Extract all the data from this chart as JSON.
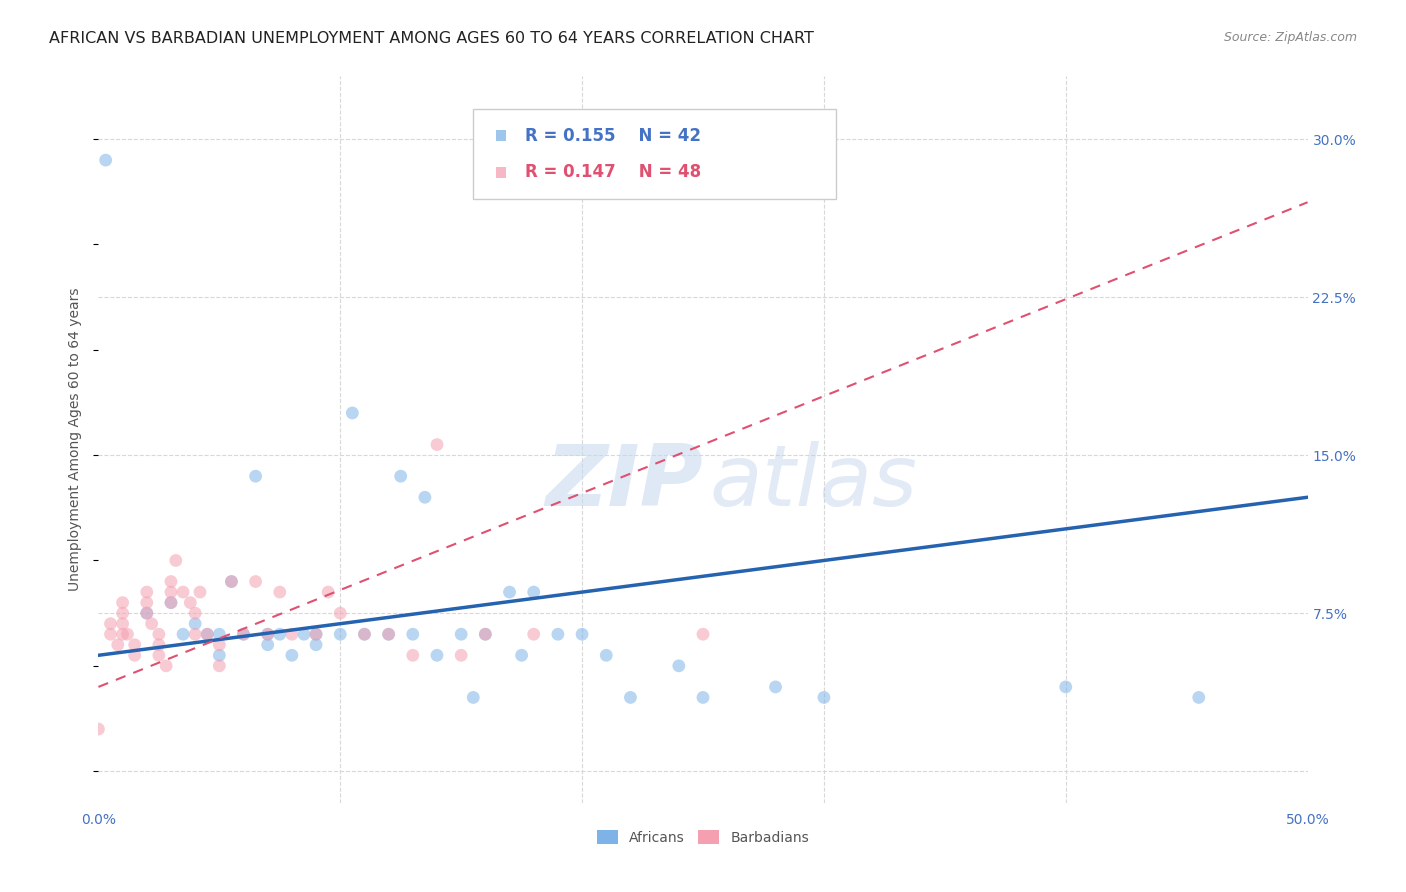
{
  "title": "AFRICAN VS BARBADIAN UNEMPLOYMENT AMONG AGES 60 TO 64 YEARS CORRELATION CHART",
  "source": "Source: ZipAtlas.com",
  "ylabel": "Unemployment Among Ages 60 to 64 years",
  "xlim": [
    0.0,
    0.5
  ],
  "ylim": [
    -0.015,
    0.33
  ],
  "xticks": [
    0.0,
    0.1,
    0.2,
    0.3,
    0.4,
    0.5
  ],
  "xticklabels": [
    "0.0%",
    "",
    "",
    "",
    "",
    "50.0%"
  ],
  "ytick_positions": [
    0.0,
    0.075,
    0.15,
    0.225,
    0.3
  ],
  "ytick_labels": [
    "",
    "7.5%",
    "15.0%",
    "22.5%",
    "30.0%"
  ],
  "africans_x": [
    0.003,
    0.02,
    0.03,
    0.035,
    0.04,
    0.045,
    0.05,
    0.05,
    0.055,
    0.06,
    0.065,
    0.07,
    0.07,
    0.075,
    0.08,
    0.085,
    0.09,
    0.09,
    0.1,
    0.105,
    0.11,
    0.12,
    0.125,
    0.13,
    0.135,
    0.14,
    0.15,
    0.155,
    0.16,
    0.17,
    0.175,
    0.18,
    0.19,
    0.2,
    0.21,
    0.22,
    0.24,
    0.25,
    0.28,
    0.3,
    0.4,
    0.455
  ],
  "africans_y": [
    0.29,
    0.075,
    0.08,
    0.065,
    0.07,
    0.065,
    0.065,
    0.055,
    0.09,
    0.065,
    0.14,
    0.065,
    0.06,
    0.065,
    0.055,
    0.065,
    0.065,
    0.06,
    0.065,
    0.17,
    0.065,
    0.065,
    0.14,
    0.065,
    0.13,
    0.055,
    0.065,
    0.035,
    0.065,
    0.085,
    0.055,
    0.085,
    0.065,
    0.065,
    0.055,
    0.035,
    0.05,
    0.035,
    0.04,
    0.035,
    0.04,
    0.035
  ],
  "barbadians_x": [
    0.0,
    0.005,
    0.005,
    0.008,
    0.01,
    0.01,
    0.01,
    0.01,
    0.012,
    0.015,
    0.015,
    0.02,
    0.02,
    0.02,
    0.022,
    0.025,
    0.025,
    0.025,
    0.028,
    0.03,
    0.03,
    0.03,
    0.032,
    0.035,
    0.038,
    0.04,
    0.04,
    0.042,
    0.045,
    0.05,
    0.05,
    0.055,
    0.06,
    0.065,
    0.07,
    0.075,
    0.08,
    0.09,
    0.095,
    0.1,
    0.11,
    0.12,
    0.13,
    0.14,
    0.15,
    0.16,
    0.18,
    0.25
  ],
  "barbadians_y": [
    0.02,
    0.065,
    0.07,
    0.06,
    0.065,
    0.08,
    0.075,
    0.07,
    0.065,
    0.06,
    0.055,
    0.085,
    0.08,
    0.075,
    0.07,
    0.065,
    0.06,
    0.055,
    0.05,
    0.09,
    0.085,
    0.08,
    0.1,
    0.085,
    0.08,
    0.075,
    0.065,
    0.085,
    0.065,
    0.06,
    0.05,
    0.09,
    0.065,
    0.09,
    0.065,
    0.085,
    0.065,
    0.065,
    0.085,
    0.075,
    0.065,
    0.065,
    0.055,
    0.155,
    0.055,
    0.065,
    0.065,
    0.065
  ],
  "african_color": "#7eb3e8",
  "barbadian_color": "#f4a0b0",
  "african_line_color": "#2563b0",
  "barbadian_line_color": "#e05070",
  "african_R": 0.155,
  "african_N": 42,
  "barbadian_R": 0.147,
  "barbadian_N": 48,
  "watermark_zip": "ZIP",
  "watermark_atlas": "atlas",
  "background_color": "#ffffff",
  "grid_color": "#d8d8d8",
  "title_fontsize": 11.5,
  "label_fontsize": 10,
  "tick_fontsize": 10,
  "legend_fontsize": 12,
  "source_fontsize": 9,
  "marker_size": 85,
  "marker_alpha": 0.55,
  "african_line_start_y": 0.055,
  "african_line_end_y": 0.13,
  "barbadian_line_start_y": 0.04,
  "barbadian_line_end_y": 0.27
}
